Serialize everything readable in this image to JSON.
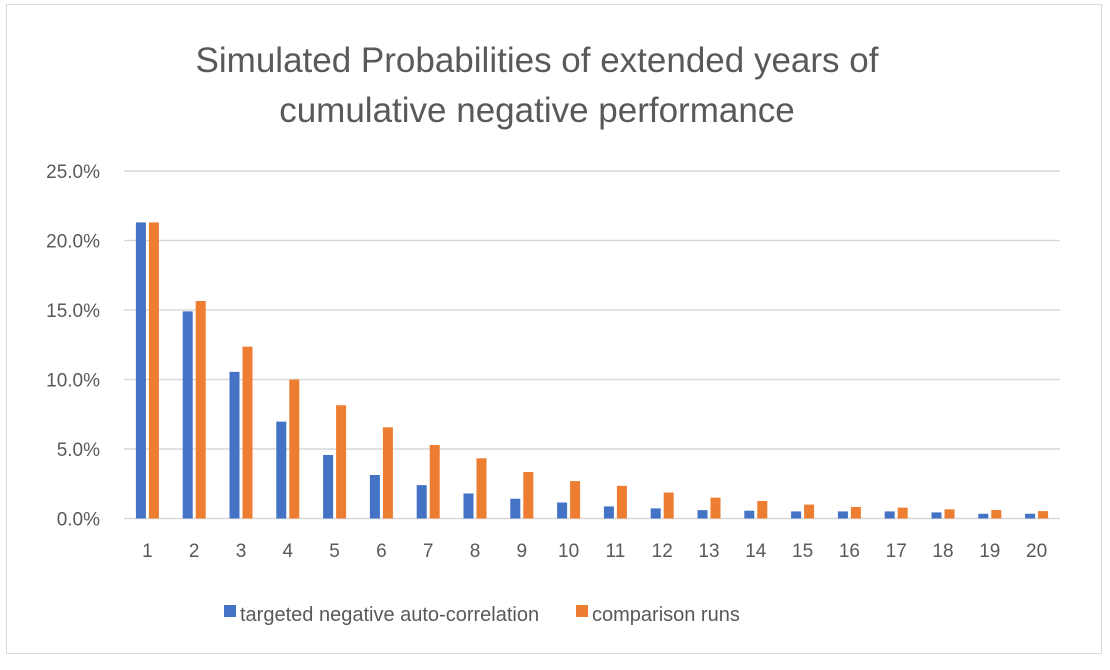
{
  "chart_data": {
    "type": "bar",
    "title": "Simulated Probabilities of extended years of cumulative negative performance",
    "title_lines": [
      "Simulated Probabilities of extended years of",
      "cumulative negative performance"
    ],
    "xlabel": "",
    "ylabel": "",
    "ylim": [
      0,
      25
    ],
    "y_ticks": [
      "0.0%",
      "5.0%",
      "10.0%",
      "15.0%",
      "20.0%",
      "25.0%"
    ],
    "y_tick_values": [
      0,
      5,
      10,
      15,
      20,
      25
    ],
    "grid": true,
    "legend_position": "bottom",
    "categories": [
      "1",
      "2",
      "3",
      "4",
      "5",
      "6",
      "7",
      "8",
      "9",
      "10",
      "11",
      "12",
      "13",
      "14",
      "15",
      "16",
      "17",
      "18",
      "19",
      "20"
    ],
    "series": [
      {
        "name": "targeted negative auto-correlation",
        "color": "#4472C4",
        "values": [
          21.3,
          14.9,
          10.55,
          6.97,
          4.57,
          3.13,
          2.4,
          1.8,
          1.42,
          1.15,
          0.87,
          0.73,
          0.6,
          0.56,
          0.51,
          0.51,
          0.51,
          0.44,
          0.34,
          0.34
        ]
      },
      {
        "name": "comparison runs",
        "color": "#ED7D31",
        "values": [
          21.3,
          15.65,
          12.36,
          10.0,
          8.15,
          6.56,
          5.29,
          4.33,
          3.34,
          2.69,
          2.35,
          1.87,
          1.5,
          1.26,
          1.0,
          0.83,
          0.78,
          0.66,
          0.61,
          0.53
        ]
      }
    ]
  }
}
